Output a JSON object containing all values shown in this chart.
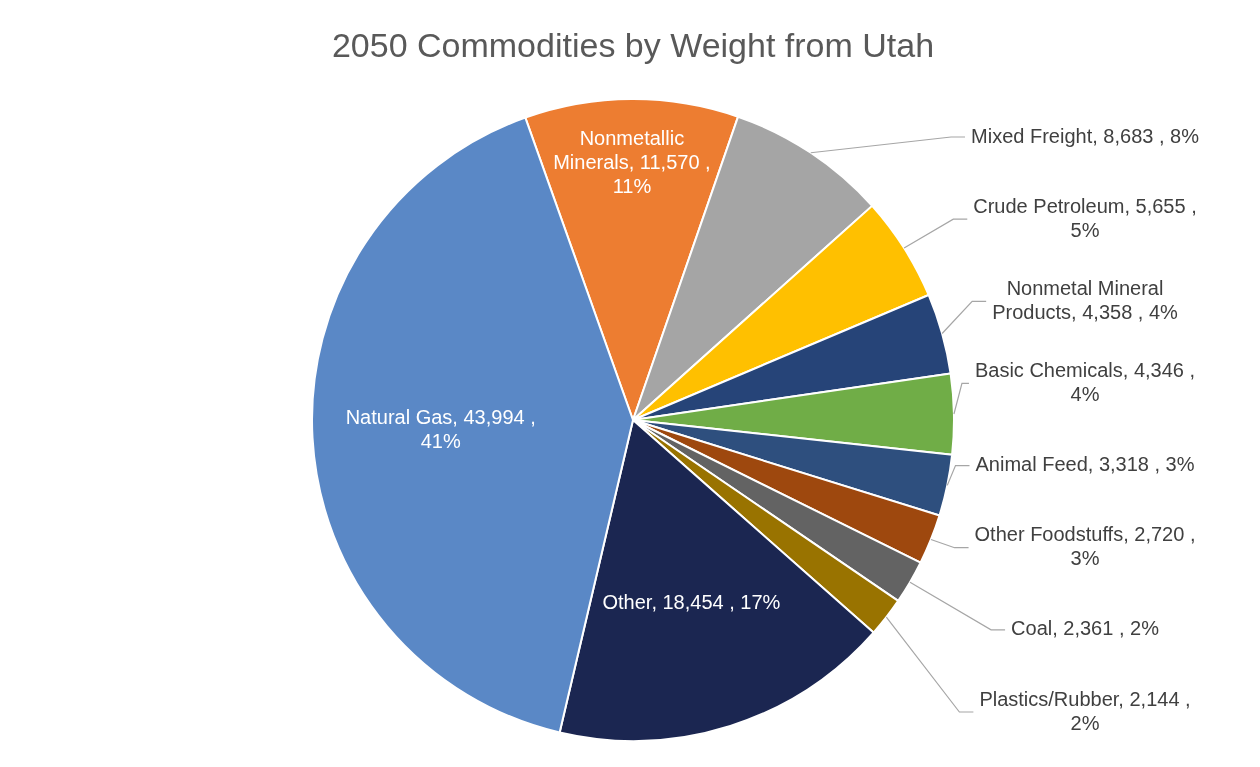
{
  "chart_data": {
    "type": "pie",
    "title": "2050 Commodities by Weight from Utah",
    "categories": [
      "Nonmetallic Minerals",
      "Mixed Freight",
      "Crude Petroleum",
      "Nonmetal Mineral Products",
      "Basic Chemicals",
      "Animal Feed",
      "Other Foodstuffs",
      "Coal",
      "Plastics/Rubber",
      "Other",
      "Natural Gas"
    ],
    "values": [
      11570,
      8683,
      5655,
      4358,
      4346,
      3318,
      2720,
      2361,
      2144,
      18454,
      43994
    ],
    "value_labels": [
      "11,570 , 11%",
      "8,683 , 8%",
      "5,655 , 5%",
      "4,358 , 4%",
      "4,346 , 4%",
      "3,318 , 3%",
      "2,720 , 3%",
      "2,361 , 2%",
      "2,144 , 2%",
      "18,454 , 17%",
      "43,994 , 41%"
    ],
    "colors": [
      "#ed7d31",
      "#a5a5a5",
      "#ffc000",
      "#264478",
      "#70ad47",
      "#2e4f7e",
      "#9e480e",
      "#636363",
      "#997300",
      "#1b2651",
      "#5a88c6"
    ],
    "legend": false
  }
}
